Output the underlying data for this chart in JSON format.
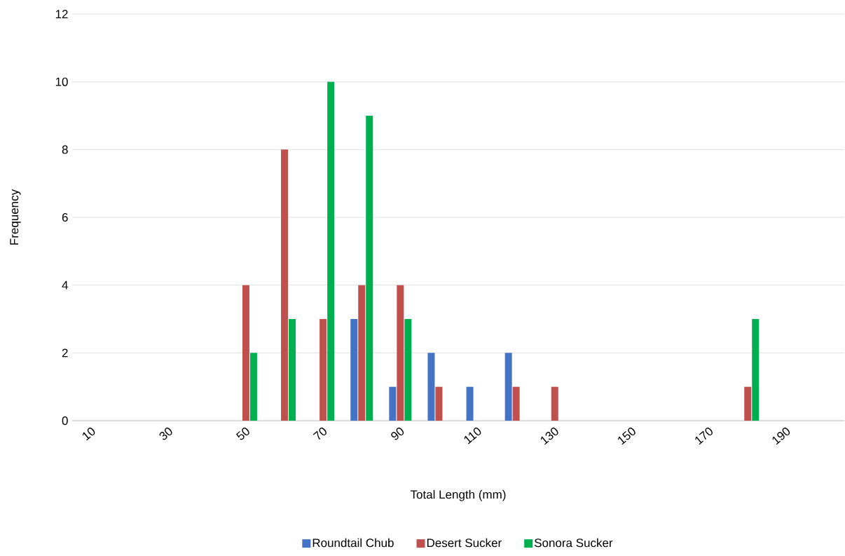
{
  "chart_data": {
    "type": "bar",
    "xlabel": "Total Length (mm)",
    "ylabel": "Frequency",
    "categories": [
      "10",
      null,
      "30",
      null,
      "50",
      null,
      "70",
      null,
      "90",
      null,
      "110",
      null,
      "130",
      null,
      "150",
      null,
      "170",
      null,
      "190",
      null
    ],
    "series": [
      {
        "name": "Roundtail Chub",
        "color": "#4472c4",
        "values": [
          0,
          0,
          0,
          0,
          0,
          0,
          0,
          3,
          1,
          2,
          1,
          2,
          0,
          0,
          0,
          0,
          0,
          0,
          0,
          0
        ]
      },
      {
        "name": "Desert Sucker",
        "color": "#c0504d",
        "values": [
          0,
          0,
          0,
          0,
          4,
          8,
          3,
          4,
          4,
          1,
          0,
          1,
          1,
          0,
          0,
          0,
          0,
          1,
          0,
          0
        ]
      },
      {
        "name": "Sonora Sucker",
        "color": "#00b050",
        "values": [
          0,
          0,
          0,
          0,
          2,
          3,
          10,
          9,
          3,
          0,
          0,
          0,
          0,
          0,
          0,
          0,
          0,
          3,
          0,
          0
        ]
      }
    ],
    "ylim": [
      0,
      12
    ],
    "yticks": [
      0,
      2,
      4,
      6,
      8,
      10,
      12
    ],
    "grid": "y",
    "legend": "bottom"
  }
}
